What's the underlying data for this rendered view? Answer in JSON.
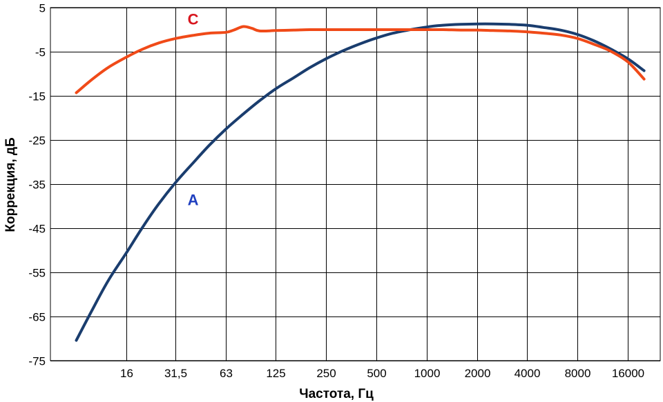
{
  "chart_data": {
    "type": "line",
    "title": "",
    "xlabel": "Частота, Гц",
    "ylabel": "Коррекция, дБ",
    "x_scale": "log",
    "xlim": [
      5.6,
      25000
    ],
    "ylim": [
      -75,
      5
    ],
    "grid": true,
    "x_ticks": [
      {
        "value": 16,
        "label": "16"
      },
      {
        "value": 31.5,
        "label": "31,5"
      },
      {
        "value": 63,
        "label": "63"
      },
      {
        "value": 125,
        "label": "125"
      },
      {
        "value": 250,
        "label": "250"
      },
      {
        "value": 500,
        "label": "500"
      },
      {
        "value": 1000,
        "label": "1000"
      },
      {
        "value": 2000,
        "label": "2000"
      },
      {
        "value": 4000,
        "label": "4000"
      },
      {
        "value": 8000,
        "label": "8000"
      },
      {
        "value": 16000,
        "label": "16000"
      }
    ],
    "y_ticks": [
      {
        "value": 5,
        "label": "5"
      },
      {
        "value": -5,
        "label": "-5"
      },
      {
        "value": -15,
        "label": "-15"
      },
      {
        "value": -25,
        "label": "-25"
      },
      {
        "value": -35,
        "label": "-35"
      },
      {
        "value": -45,
        "label": "-45"
      },
      {
        "value": -55,
        "label": "-55"
      },
      {
        "value": -65,
        "label": "-65"
      },
      {
        "value": -75,
        "label": "-75"
      }
    ],
    "series": [
      {
        "name": "A",
        "color": "#1a3d6e",
        "label_color": "#1f3fbf",
        "label_at": {
          "x": 40,
          "y": -39.8
        },
        "x": [
          8,
          10,
          12.5,
          16,
          20,
          25,
          31.5,
          40,
          50,
          63,
          80,
          100,
          125,
          160,
          200,
          250,
          315,
          400,
          500,
          630,
          800,
          1000,
          1250,
          1600,
          2000,
          2500,
          3150,
          4000,
          5000,
          6300,
          8000,
          10000,
          12500,
          16000,
          20000
        ],
        "y": [
          -70.4,
          -63.4,
          -56.7,
          -50.5,
          -44.7,
          -39.4,
          -34.6,
          -30.2,
          -26.2,
          -22.5,
          -19.1,
          -16.1,
          -13.4,
          -10.9,
          -8.6,
          -6.6,
          -4.8,
          -3.2,
          -1.9,
          -0.8,
          0.0,
          0.6,
          1.0,
          1.2,
          1.3,
          1.3,
          1.2,
          1.0,
          0.5,
          -0.1,
          -1.1,
          -2.5,
          -4.3,
          -6.6,
          -9.3
        ]
      },
      {
        "name": "C",
        "color": "#f04a18",
        "label_color": "#d8161e",
        "label_at": {
          "x": 40,
          "y": 1.2
        },
        "x": [
          8,
          10,
          12.5,
          16,
          20,
          25,
          31.5,
          40,
          50,
          63,
          70,
          80,
          90,
          100,
          125,
          160,
          200,
          250,
          315,
          400,
          500,
          630,
          800,
          1000,
          1250,
          1600,
          2000,
          2500,
          3150,
          4000,
          5000,
          6300,
          8000,
          10000,
          12500,
          16000,
          20000
        ],
        "y": [
          -14.3,
          -11.2,
          -8.5,
          -6.2,
          -4.4,
          -3.0,
          -2.0,
          -1.3,
          -0.8,
          -0.6,
          -0.1,
          0.7,
          0.3,
          -0.3,
          -0.2,
          -0.1,
          0.0,
          0.0,
          0.0,
          0.0,
          0.0,
          0.0,
          0.0,
          0.0,
          0.0,
          -0.1,
          -0.1,
          -0.2,
          -0.3,
          -0.5,
          -0.8,
          -1.2,
          -2.0,
          -3.3,
          -4.8,
          -7.3,
          -11.2
        ]
      }
    ]
  }
}
